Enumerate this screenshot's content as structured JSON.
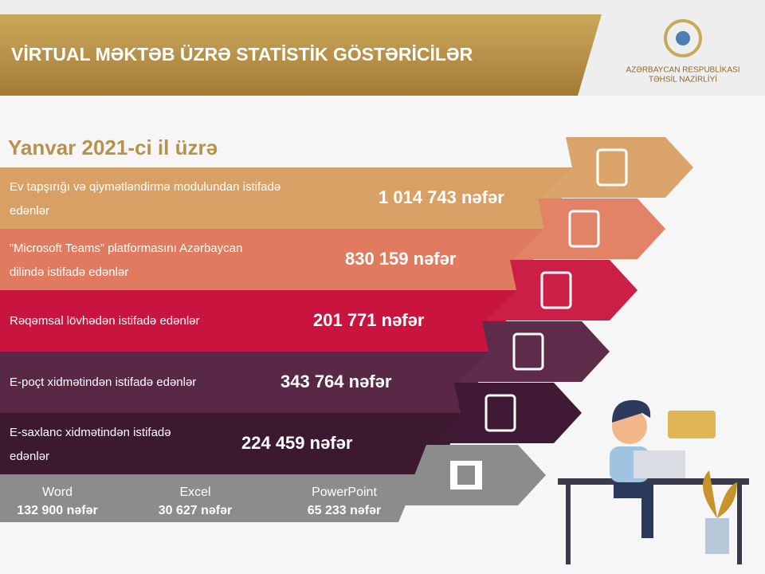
{
  "header": {
    "title": "VİRTUAL MƏKTƏB ÜZRƏ STATİSTİK GÖSTƏRİCİLƏR",
    "org_line1": "AZƏRBAYCAN RESPUBLİKASI",
    "org_line2": "TƏHSİL NAZİRLİYİ"
  },
  "subtitle": "Yanvar 2021-ci il üzrə",
  "rows": [
    {
      "label": [
        "Ev tapşırığı və qiymətləndirmə modulundan  istifadə",
        "edənlər"
      ],
      "value": "1 014 743 nəfər"
    },
    {
      "label": [
        "”Microsoft Teams” platformasını Azərbaycan",
        "dilində istifadə edənlər"
      ],
      "value": "830 159 nəfər"
    },
    {
      "label": [
        "Rəqəmsal lövhədən istifadə edənlər"
      ],
      "value": "201 771 nəfər"
    },
    {
      "label": [
        "E-poçt xidmətindən istifadə edənlər"
      ],
      "value": "343 764 nəfər"
    },
    {
      "label": [
        "E-saxlanc xidmətindən istifadə",
        "edənlər"
      ],
      "value": "224 459 nəfər"
    }
  ],
  "office": [
    {
      "name": "Word",
      "value": "132 900 nəfər"
    },
    {
      "name": "Excel",
      "value": "30 627 nəfər"
    },
    {
      "name": "PowerPoint",
      "value": "65 233 nəfər"
    }
  ]
}
